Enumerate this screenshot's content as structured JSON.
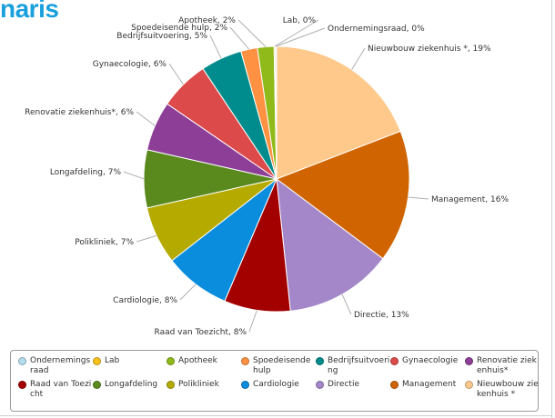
{
  "brand": {
    "text": "naris",
    "color": "#1aa0dc"
  },
  "chart_data": {
    "type": "pie",
    "title": "",
    "slices": [
      {
        "name": "Nieuwbouw ziekenhuis *",
        "label": "Nieuwbouw ziekenhuis *, 19%",
        "value": 19,
        "color": "#ffc98b"
      },
      {
        "name": "Management",
        "label": "Management, 16%",
        "value": 16,
        "color": "#d06400"
      },
      {
        "name": "Directie",
        "label": "Directie, 13%",
        "value": 13,
        "color": "#a487c9"
      },
      {
        "name": "Raad van Toezicht",
        "label": "Raad van Toezicht, 8%",
        "value": 8,
        "color": "#a30000"
      },
      {
        "name": "Cardiologie",
        "label": "Cardiologie, 8%",
        "value": 8,
        "color": "#0a8ddd"
      },
      {
        "name": "Polikliniek",
        "label": "Polikliniek, 7%",
        "value": 7,
        "color": "#b5aa00"
      },
      {
        "name": "Longafdeling",
        "label": "Longafdeling, 7%",
        "value": 7,
        "color": "#5a8a1e"
      },
      {
        "name": "Renovatie ziekenhuis*",
        "label": "Renovatie ziekenhuis*, 6%",
        "value": 6,
        "color": "#8d3f98"
      },
      {
        "name": "Gynaecologie",
        "label": "Gynaecologie, 6%",
        "value": 6,
        "color": "#dc4a4a"
      },
      {
        "name": "Bedrijfsuitvoering",
        "label": "Bedrijfsuitvoering, 5%",
        "value": 5,
        "color": "#008c8c"
      },
      {
        "name": "Spoedeisende hulp",
        "label": "Spoedeisende hulp, 2%",
        "value": 2,
        "color": "#ff9142"
      },
      {
        "name": "Apotheek",
        "label": "Apotheek, 2%",
        "value": 2,
        "color": "#8fba1a"
      },
      {
        "name": "Lab",
        "label": "Lab, 0%",
        "value": 0.15,
        "color": "#f7c21c"
      },
      {
        "name": "Ondernemingsraad",
        "label": "Ondernemingsraad, 0%",
        "value": 0.15,
        "color": "#b3dced"
      }
    ],
    "legend_position": "bottom"
  },
  "legend": {
    "items": [
      {
        "label": "Ondernemingsraad",
        "color": "#b3dced"
      },
      {
        "label": "Lab",
        "color": "#f7c21c"
      },
      {
        "label": "Apotheek",
        "color": "#8fba1a"
      },
      {
        "label": "Spoedeisende hulp",
        "color": "#ff9142"
      },
      {
        "label": "Bedrijfsuitvoering",
        "color": "#008c8c"
      },
      {
        "label": "Gynaecologie",
        "color": "#dc4a4a"
      },
      {
        "label": "Renovatie ziekenhuis*",
        "color": "#8d3f98"
      },
      {
        "label": "Raad van Toezicht",
        "color": "#a30000"
      },
      {
        "label": "Longafdeling",
        "color": "#5a8a1e"
      },
      {
        "label": "Polikliniek",
        "color": "#b5aa00"
      },
      {
        "label": "Cardiologie",
        "color": "#0a8ddd"
      },
      {
        "label": "Directie",
        "color": "#a487c9"
      },
      {
        "label": "Management",
        "color": "#d06400"
      },
      {
        "label": "Nieuwbouw ziekenhuis *",
        "color": "#ffc98b"
      }
    ]
  }
}
